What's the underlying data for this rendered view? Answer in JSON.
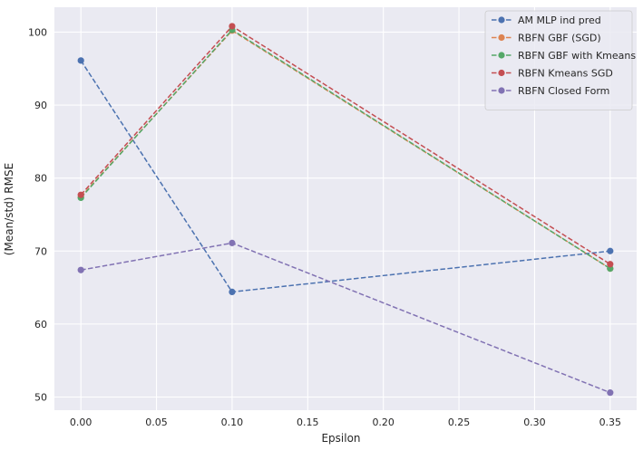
{
  "chart_data": {
    "type": "line",
    "xlabel": "Epsilon",
    "ylabel": "(Mean/std) RMSE",
    "xlim": [
      -0.0175,
      0.3675
    ],
    "ylim": [
      48.2,
      103.4
    ],
    "xticks": [
      0.0,
      0.05,
      0.1,
      0.15,
      0.2,
      0.25,
      0.3,
      0.35
    ],
    "xtick_labels": [
      "0.00",
      "0.05",
      "0.10",
      "0.15",
      "0.20",
      "0.25",
      "0.30",
      "0.35"
    ],
    "yticks": [
      50,
      60,
      70,
      80,
      90,
      100
    ],
    "ytick_labels": [
      "50",
      "60",
      "70",
      "80",
      "90",
      "100"
    ],
    "grid": true,
    "legend_position": "top-right",
    "x": [
      0.0,
      0.1,
      0.35
    ],
    "series": [
      {
        "name": "AM MLP ind pred",
        "color": "#4c72b0",
        "values": [
          96.1,
          64.4,
          70.0
        ]
      },
      {
        "name": "RBFN GBF (SGD)",
        "color": "#dd8452",
        "values": [
          77.4,
          100.2,
          67.6
        ]
      },
      {
        "name": "RBFN GBF with Kmeans",
        "color": "#55a868",
        "values": [
          77.3,
          100.3,
          67.6
        ]
      },
      {
        "name": "RBFN  Kmeans SGD",
        "color": "#c44e52",
        "values": [
          77.7,
          100.8,
          68.2
        ]
      },
      {
        "name": "RBFN Closed Form",
        "color": "#8172b3",
        "values": [
          67.4,
          71.1,
          50.6
        ]
      }
    ]
  }
}
